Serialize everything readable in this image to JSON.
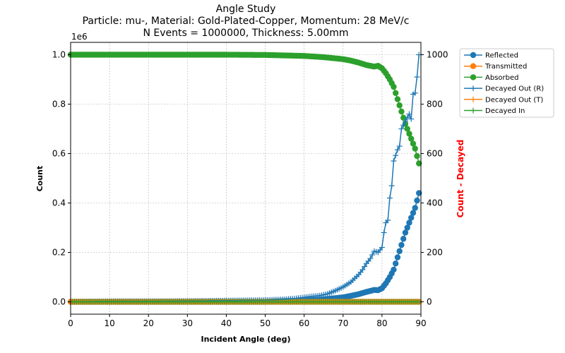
{
  "chart_data": {
    "type": "line",
    "title_lines": [
      "Angle Study",
      "Particle: mu-, Material: Gold-Plated-Copper, Momentum: 28 MeV/c",
      "N Events = 1000000, Thickness: 5.00mm"
    ],
    "xlabel": "Incident Angle (deg)",
    "ylabel_left": "Count",
    "ylabel_right": "Count - Decayed",
    "left_offset_label": "1e6",
    "xlim": [
      0,
      90
    ],
    "ylim_left": [
      -0.05,
      1.05
    ],
    "ylim_right": [
      -50,
      1050
    ],
    "xticks": [
      0,
      10,
      20,
      30,
      40,
      50,
      60,
      70,
      80,
      90
    ],
    "yticks_left": [
      0.0,
      0.2,
      0.4,
      0.6,
      0.8,
      1.0
    ],
    "yticks_left_labels": [
      "0.0",
      "0.2",
      "0.4",
      "0.6",
      "0.8",
      "1.0"
    ],
    "yticks_right": [
      0,
      200,
      400,
      600,
      800,
      1000
    ],
    "grid": true,
    "legend_position": "outside-right-top",
    "colors": {
      "blue": "#1f77b4",
      "orange": "#ff7f0e",
      "green": "#2ca02c",
      "right_label": "#ff0000"
    },
    "series": [
      {
        "name": "Reflected",
        "axis": "left",
        "marker": "circle",
        "color": "#1f77b4",
        "points": [
          [
            0,
            0
          ],
          [
            10,
            0
          ],
          [
            20,
            0
          ],
          [
            30,
            0
          ],
          [
            40,
            0
          ],
          [
            50,
            0
          ],
          [
            55,
            0.003
          ],
          [
            60,
            0.005
          ],
          [
            65,
            0.01
          ],
          [
            70,
            0.018
          ],
          [
            72,
            0.024
          ],
          [
            74,
            0.031
          ],
          [
            76,
            0.04
          ],
          [
            78,
            0.048
          ],
          [
            79,
            0.047
          ],
          [
            80,
            0.055
          ],
          [
            81,
            0.075
          ],
          [
            82,
            0.1
          ],
          [
            83,
            0.13
          ],
          [
            84,
            0.18
          ],
          [
            85,
            0.23
          ],
          [
            86,
            0.28
          ],
          [
            87,
            0.32
          ],
          [
            88,
            0.36
          ],
          [
            88.5,
            0.38
          ],
          [
            89,
            0.41
          ],
          [
            89.5,
            0.44
          ]
        ]
      },
      {
        "name": "Transmitted",
        "axis": "left",
        "marker": "circle",
        "color": "#ff7f0e",
        "points": [
          [
            0,
            0
          ],
          [
            10,
            0
          ],
          [
            20,
            0
          ],
          [
            30,
            0
          ],
          [
            40,
            0
          ],
          [
            50,
            0
          ],
          [
            60,
            0
          ],
          [
            70,
            0
          ],
          [
            80,
            0
          ],
          [
            85,
            0
          ],
          [
            89.5,
            0
          ]
        ]
      },
      {
        "name": "Absorbed",
        "axis": "left",
        "marker": "circle",
        "color": "#2ca02c",
        "points": [
          [
            0,
            1.0
          ],
          [
            10,
            1.0
          ],
          [
            20,
            1.0
          ],
          [
            30,
            1.0
          ],
          [
            40,
            1.0
          ],
          [
            50,
            0.999
          ],
          [
            55,
            0.997
          ],
          [
            60,
            0.995
          ],
          [
            65,
            0.99
          ],
          [
            70,
            0.982
          ],
          [
            72,
            0.976
          ],
          [
            74,
            0.968
          ],
          [
            76,
            0.958
          ],
          [
            78,
            0.952
          ],
          [
            79,
            0.955
          ],
          [
            80,
            0.945
          ],
          [
            81,
            0.925
          ],
          [
            82,
            0.9
          ],
          [
            83,
            0.87
          ],
          [
            84,
            0.82
          ],
          [
            85,
            0.77
          ],
          [
            86,
            0.72
          ],
          [
            87,
            0.68
          ],
          [
            88,
            0.64
          ],
          [
            88.5,
            0.62
          ],
          [
            89,
            0.59
          ],
          [
            89.5,
            0.56
          ]
        ]
      },
      {
        "name": "Decayed Out (R)",
        "axis": "right",
        "marker": "plus",
        "color": "#1f77b4",
        "points": [
          [
            0,
            0
          ],
          [
            10,
            2
          ],
          [
            20,
            2
          ],
          [
            30,
            3
          ],
          [
            40,
            5
          ],
          [
            50,
            7
          ],
          [
            55,
            10
          ],
          [
            58,
            14
          ],
          [
            60,
            18
          ],
          [
            62,
            22
          ],
          [
            64,
            25
          ],
          [
            66,
            32
          ],
          [
            68,
            45
          ],
          [
            70,
            60
          ],
          [
            71,
            70
          ],
          [
            72,
            80
          ],
          [
            73,
            95
          ],
          [
            74,
            110
          ],
          [
            75,
            130
          ],
          [
            76,
            155
          ],
          [
            77,
            175
          ],
          [
            78,
            205
          ],
          [
            79,
            200
          ],
          [
            80,
            220
          ],
          [
            80.5,
            280
          ],
          [
            81,
            320
          ],
          [
            81.5,
            330
          ],
          [
            82,
            420
          ],
          [
            82.5,
            470
          ],
          [
            83,
            570
          ],
          [
            84,
            615
          ],
          [
            84.5,
            630
          ],
          [
            85,
            700
          ],
          [
            86,
            730
          ],
          [
            87,
            760
          ],
          [
            87.5,
            740
          ],
          [
            88,
            840
          ],
          [
            88.5,
            845
          ],
          [
            89,
            910
          ],
          [
            89.5,
            1000
          ]
        ]
      },
      {
        "name": "Decayed Out (T)",
        "axis": "right",
        "marker": "plus",
        "color": "#ff7f0e",
        "points": [
          [
            0,
            0
          ],
          [
            10,
            0
          ],
          [
            20,
            0
          ],
          [
            30,
            0
          ],
          [
            40,
            0
          ],
          [
            50,
            0
          ],
          [
            60,
            0
          ],
          [
            70,
            0
          ],
          [
            80,
            0
          ],
          [
            89.5,
            0
          ]
        ]
      },
      {
        "name": "Decayed In",
        "axis": "right",
        "marker": "plus",
        "color": "#2ca02c",
        "points": [
          [
            0,
            0
          ],
          [
            10,
            0
          ],
          [
            20,
            0
          ],
          [
            30,
            0
          ],
          [
            40,
            0
          ],
          [
            50,
            0
          ],
          [
            60,
            0
          ],
          [
            70,
            0
          ],
          [
            80,
            0
          ],
          [
            89.5,
            0
          ]
        ]
      }
    ]
  }
}
